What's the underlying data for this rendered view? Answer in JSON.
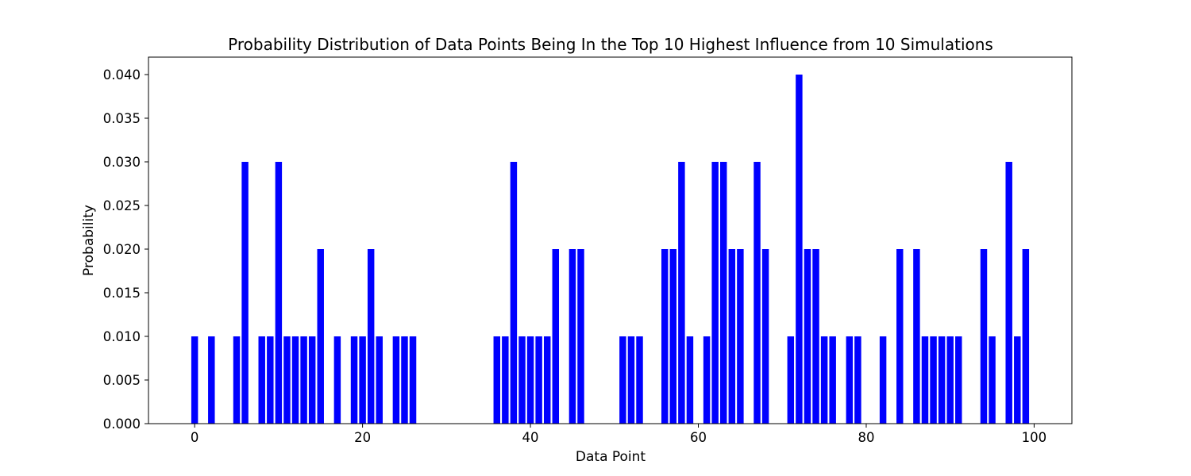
{
  "chart_data": {
    "type": "bar",
    "title": "Probability Distribution of Data Points Being In the Top 10 Highest Influence from 10 Simulations",
    "xlabel": "Data Point",
    "ylabel": "Probability",
    "xlim": [
      -5.5,
      104.5
    ],
    "ylim": [
      0,
      0.042
    ],
    "x_ticks": [
      0,
      20,
      40,
      60,
      80,
      100
    ],
    "x_tick_labels": [
      "0",
      "20",
      "40",
      "60",
      "80",
      "100"
    ],
    "y_ticks": [
      0,
      0.005,
      0.01,
      0.015,
      0.02,
      0.025,
      0.03,
      0.035,
      0.04
    ],
    "y_tick_labels": [
      "0.000",
      "0.005",
      "0.010",
      "0.015",
      "0.020",
      "0.025",
      "0.030",
      "0.035",
      "0.040"
    ],
    "bar_color": "#0000ff",
    "bar_width": 0.8,
    "grid": false,
    "x": [
      0,
      2,
      5,
      6,
      8,
      9,
      10,
      11,
      12,
      13,
      14,
      15,
      17,
      19,
      20,
      21,
      22,
      24,
      25,
      26,
      36,
      37,
      38,
      39,
      40,
      41,
      42,
      43,
      45,
      46,
      51,
      52,
      53,
      56,
      57,
      58,
      59,
      61,
      62,
      63,
      64,
      65,
      67,
      68,
      71,
      72,
      73,
      74,
      75,
      76,
      78,
      79,
      82,
      84,
      86,
      87,
      88,
      89,
      90,
      91,
      94,
      95,
      97,
      98,
      99
    ],
    "values": [
      0.01,
      0.01,
      0.01,
      0.03,
      0.01,
      0.01,
      0.03,
      0.01,
      0.01,
      0.01,
      0.01,
      0.02,
      0.01,
      0.01,
      0.01,
      0.02,
      0.01,
      0.01,
      0.01,
      0.01,
      0.01,
      0.01,
      0.03,
      0.01,
      0.01,
      0.01,
      0.01,
      0.02,
      0.02,
      0.02,
      0.01,
      0.01,
      0.01,
      0.02,
      0.02,
      0.03,
      0.01,
      0.01,
      0.03,
      0.03,
      0.02,
      0.02,
      0.03,
      0.02,
      0.01,
      0.04,
      0.02,
      0.02,
      0.01,
      0.01,
      0.01,
      0.01,
      0.01,
      0.02,
      0.02,
      0.01,
      0.01,
      0.01,
      0.01,
      0.01,
      0.02,
      0.01,
      0.03,
      0.01,
      0.02
    ]
  }
}
